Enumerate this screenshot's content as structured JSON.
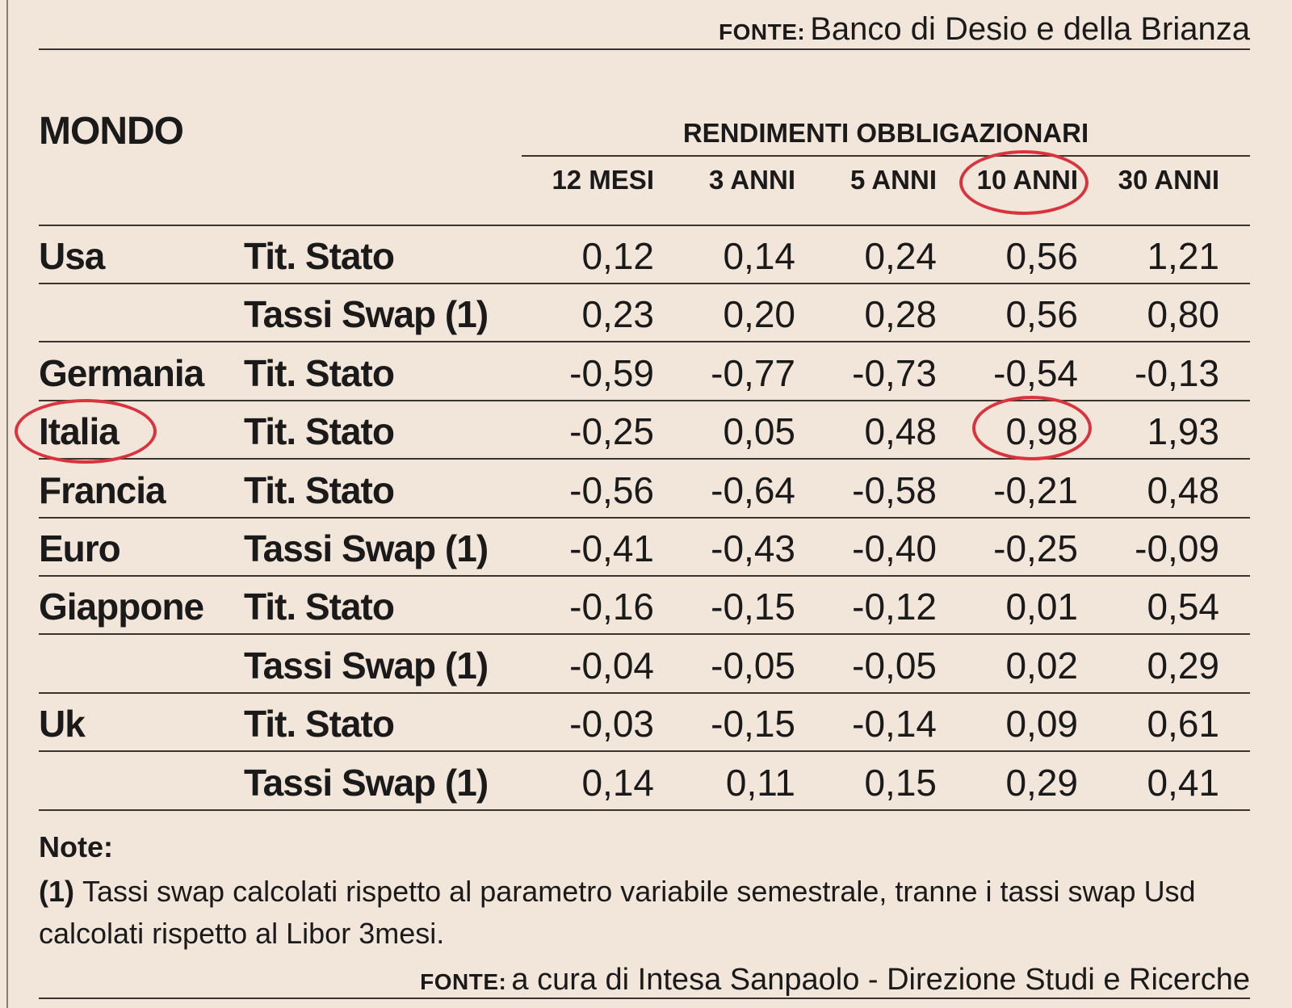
{
  "source_top": {
    "label": "FONTE:",
    "text": "Banco di Desio e della Brianza"
  },
  "title": "MONDO",
  "group_header": "RENDIMENTI OBBLIGAZIONARI",
  "columns": [
    "12 MESI",
    "3 ANNI",
    "5 ANNI",
    "10 ANNI",
    "30 ANNI"
  ],
  "rows": [
    {
      "country": "Usa",
      "instrument": "Tit. Stato",
      "values": [
        "0,12",
        "0,14",
        "0,24",
        "0,56",
        "1,21"
      ]
    },
    {
      "country": "",
      "instrument": "Tassi Swap (1)",
      "values": [
        "0,23",
        "0,20",
        "0,28",
        "0,56",
        "0,80"
      ]
    },
    {
      "country": "Germania",
      "instrument": "Tit. Stato",
      "values": [
        "-0,59",
        "-0,77",
        "-0,73",
        "-0,54",
        "-0,13"
      ]
    },
    {
      "country": "Italia",
      "instrument": "Tit. Stato",
      "values": [
        "-0,25",
        "0,05",
        "0,48",
        "0,98",
        "1,93"
      ]
    },
    {
      "country": "Francia",
      "instrument": "Tit. Stato",
      "values": [
        "-0,56",
        "-0,64",
        "-0,58",
        "-0,21",
        "0,48"
      ]
    },
    {
      "country": "Euro",
      "instrument": "Tassi Swap (1)",
      "values": [
        "-0,41",
        "-0,43",
        "-0,40",
        "-0,25",
        "-0,09"
      ]
    },
    {
      "country": "Giappone",
      "instrument": "Tit. Stato",
      "values": [
        "-0,16",
        "-0,15",
        "-0,12",
        "0,01",
        "0,54"
      ]
    },
    {
      "country": "",
      "instrument": "Tassi Swap (1)",
      "values": [
        "-0,04",
        "-0,05",
        "-0,05",
        "0,02",
        "0,29"
      ]
    },
    {
      "country": "Uk",
      "instrument": "Tit. Stato",
      "values": [
        "-0,03",
        "-0,15",
        "-0,14",
        "0,09",
        "0,61"
      ]
    },
    {
      "country": "",
      "instrument": "Tassi Swap (1)",
      "values": [
        "0,14",
        "0,11",
        "0,15",
        "0,29",
        "0,41"
      ]
    }
  ],
  "notes": {
    "title": "Note:",
    "ref": "(1)",
    "text": "Tassi swap calcolati rispetto al parametro variabile semestrale, tranne i tassi swap Usd calcolati rispetto al Libor 3mesi."
  },
  "source_bottom": {
    "label": "FONTE:",
    "text": "a cura di Intesa Sanpaolo - Direzione Studi e Ricerche"
  },
  "highlight_color": "#d9343d"
}
